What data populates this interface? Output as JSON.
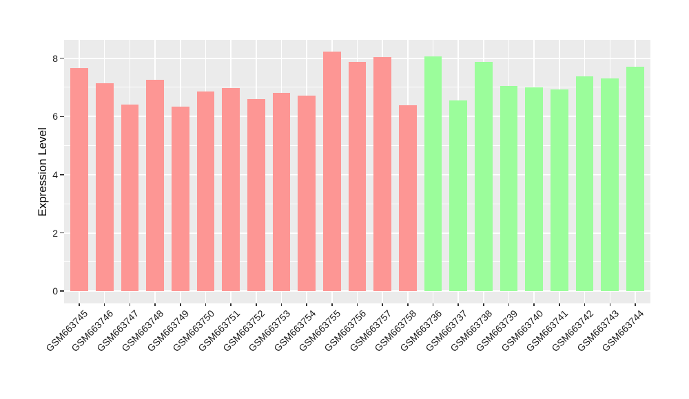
{
  "chart_data": {
    "type": "bar",
    "title": "",
    "xlabel": "",
    "ylabel": "Expression Level",
    "ylim": [
      -0.42,
      8.63
    ],
    "yticks": [
      0,
      2,
      4,
      6,
      8
    ],
    "yticks_minor": [
      1,
      3,
      5,
      7
    ],
    "grid": true,
    "legend": "none",
    "panel_bg": "#EBEBEB",
    "grid_color": "#FFFFFF",
    "tick_color": "#333333",
    "text_color": "#1A1A1A",
    "bar_width_frac": 0.7,
    "series": [
      {
        "name": "group-pink",
        "color": "#FD9694",
        "categories": [
          "GSM663745",
          "GSM663746",
          "GSM663747",
          "GSM663748",
          "GSM663749",
          "GSM663750",
          "GSM663751",
          "GSM663752",
          "GSM663753",
          "GSM663754",
          "GSM663755",
          "GSM663756",
          "GSM663757",
          "GSM663758"
        ],
        "values": [
          7.65,
          7.14,
          6.4,
          7.25,
          6.34,
          6.85,
          6.98,
          6.59,
          6.81,
          6.71,
          8.24,
          7.87,
          8.05,
          6.38
        ]
      },
      {
        "name": "group-green",
        "color": "#9BFD9B",
        "categories": [
          "GSM663736",
          "GSM663737",
          "GSM663738",
          "GSM663739",
          "GSM663740",
          "GSM663741",
          "GSM663742",
          "GSM663743",
          "GSM663744"
        ],
        "values": [
          8.07,
          6.55,
          7.88,
          7.04,
          7.01,
          6.94,
          7.37,
          7.31,
          7.72
        ]
      }
    ]
  }
}
